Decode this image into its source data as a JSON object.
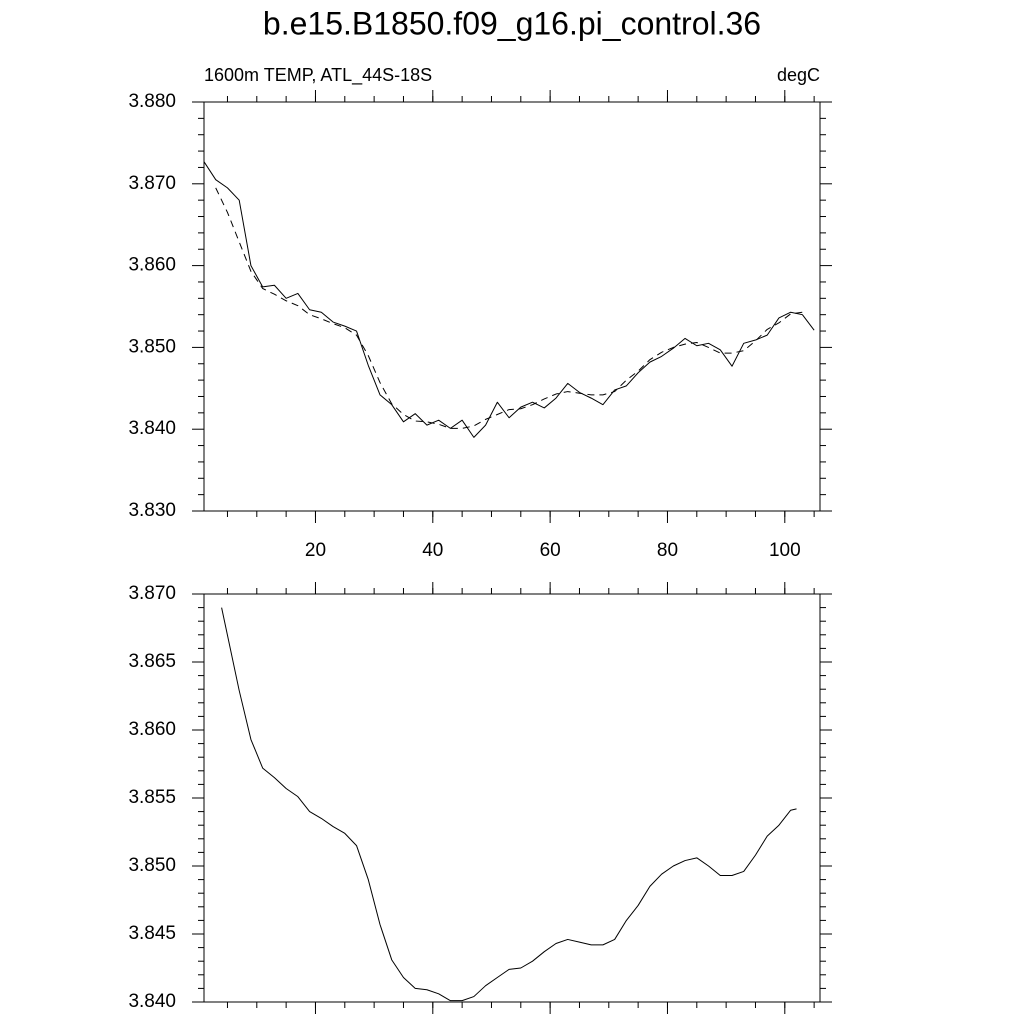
{
  "chart_data": [
    {
      "type": "line",
      "title": "b.e15.B1850.f09_g16.pi_control.36",
      "subtitle": "1600m TEMP, ATL_44S-18S",
      "units": "degC",
      "x": [
        1,
        3,
        5,
        7,
        9,
        11,
        13,
        15,
        17,
        19,
        21,
        23,
        25,
        27,
        29,
        31,
        33,
        35,
        37,
        39,
        41,
        43,
        45,
        47,
        49,
        51,
        53,
        55,
        57,
        59,
        61,
        63,
        65,
        67,
        69,
        71,
        73,
        75,
        77,
        79,
        81,
        83,
        85,
        87,
        89,
        91,
        93,
        95,
        97,
        99,
        101,
        103,
        105
      ],
      "series": [
        {
          "color": "#000000",
          "style": "solid",
          "values": [
            3.8727,
            3.8705,
            3.8695,
            3.868,
            3.86,
            3.8574,
            3.8576,
            3.856,
            3.8566,
            3.8546,
            3.8543,
            3.8531,
            3.8526,
            3.852,
            3.8478,
            3.8442,
            3.843,
            3.8409,
            3.8419,
            3.8405,
            3.8411,
            3.8401,
            3.8411,
            3.839,
            3.8405,
            3.8433,
            3.8414,
            3.8427,
            3.8433,
            3.8426,
            3.8438,
            3.8456,
            3.8445,
            3.8438,
            3.843,
            3.8448,
            3.8453,
            3.8469,
            3.8482,
            3.8489,
            3.8499,
            3.8511,
            3.8502,
            3.8505,
            3.8497,
            3.8477,
            3.8505,
            3.8509,
            3.8515,
            3.8536,
            3.8543,
            3.854,
            3.8521
          ]
        },
        {
          "color": "#000000",
          "style": "dashed",
          "values": [
            null,
            3.8695,
            3.8665,
            3.8629,
            3.8593,
            3.8572,
            3.8565,
            3.8557,
            3.8551,
            3.854,
            3.8535,
            3.8529,
            3.8524,
            3.8515,
            3.849,
            3.8457,
            3.8431,
            3.8418,
            3.841,
            3.8409,
            3.8406,
            3.8401,
            3.8401,
            3.8404,
            3.8412,
            3.8418,
            3.8424,
            3.8425,
            3.843,
            3.8437,
            3.8443,
            3.8446,
            3.8444,
            3.8442,
            3.8442,
            3.8446,
            3.846,
            3.8471,
            3.8485,
            3.8494,
            3.85,
            3.8504,
            3.8506,
            3.85,
            3.8493,
            3.8493,
            3.8496,
            3.8508,
            3.8522,
            3.853,
            3.8541,
            3.8543,
            null
          ]
        }
      ],
      "xlim": [
        1,
        106
      ],
      "xticks": [
        20,
        40,
        60,
        80,
        100
      ],
      "ylim": [
        3.83,
        3.88
      ],
      "yticks": [
        {
          "value": 3.83,
          "label": "3.830"
        },
        {
          "value": 3.84,
          "label": "3.840"
        },
        {
          "value": 3.85,
          "label": "3.850"
        },
        {
          "value": 3.86,
          "label": "3.860"
        },
        {
          "value": 3.87,
          "label": "3.870"
        },
        {
          "value": 3.88,
          "label": "3.880"
        }
      ],
      "show_xtick_labels": true
    },
    {
      "type": "line",
      "x": [
        4,
        7,
        9,
        11,
        13,
        15,
        17,
        19,
        21,
        23,
        25,
        27,
        29,
        31,
        33,
        35,
        37,
        39,
        41,
        43,
        45,
        47,
        49,
        51,
        53,
        55,
        57,
        59,
        61,
        63,
        65,
        67,
        69,
        71,
        73,
        75,
        77,
        79,
        81,
        83,
        85,
        87,
        89,
        91,
        93,
        95,
        97,
        99,
        101,
        102
      ],
      "series": [
        {
          "color": "#000000",
          "style": "solid",
          "values": [
            3.869,
            3.8629,
            3.8593,
            3.8572,
            3.8565,
            3.8557,
            3.8551,
            3.854,
            3.8535,
            3.8529,
            3.8524,
            3.8515,
            3.849,
            3.8457,
            3.8431,
            3.8418,
            3.841,
            3.8409,
            3.8406,
            3.8401,
            3.8401,
            3.8404,
            3.8412,
            3.8418,
            3.8424,
            3.8425,
            3.843,
            3.8437,
            3.8443,
            3.8446,
            3.8444,
            3.8442,
            3.8442,
            3.8446,
            3.846,
            3.8471,
            3.8485,
            3.8494,
            3.85,
            3.8504,
            3.8506,
            3.85,
            3.8493,
            3.8493,
            3.8496,
            3.8508,
            3.8522,
            3.853,
            3.8541,
            3.8542
          ]
        }
      ],
      "xlim": [
        1,
        106
      ],
      "xticks": [
        20,
        40,
        60,
        80,
        100
      ],
      "ylim": [
        3.84,
        3.87
      ],
      "yticks": [
        {
          "value": 3.84,
          "label": "3.840"
        },
        3.845,
        {
          "value": 3.85,
          "label": "3.850"
        },
        3.855,
        {
          "value": 3.86,
          "label": "3.860"
        },
        3.865,
        {
          "value": 3.87,
          "label": "3.870"
        }
      ],
      "show_xtick_labels": false
    }
  ]
}
